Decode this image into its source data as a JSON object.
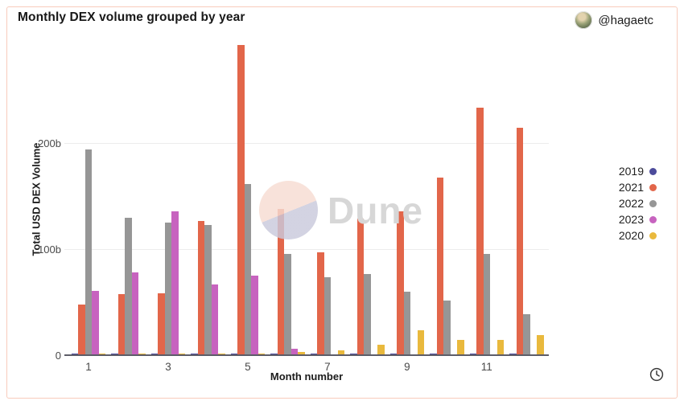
{
  "card": {
    "title": "Monthly DEX volume grouped by year",
    "author_handle": "@hagaetc",
    "watermark_text": "Dune",
    "border_color": "#f8cbbc"
  },
  "icons": {
    "clock": "clock",
    "avatar": "user-profile-photo",
    "dune_logo": "dune-circle-logo"
  },
  "chart_data": {
    "type": "bar",
    "title": "Monthly DEX volume grouped by year",
    "xlabel": "Month number",
    "ylabel": "Total USD DEX Volume",
    "unit": "billions USD",
    "x": [
      1,
      2,
      3,
      4,
      5,
      6,
      7,
      8,
      9,
      10,
      11,
      12
    ],
    "x_tick_labels": [
      "1",
      "3",
      "5",
      "7",
      "9",
      "11"
    ],
    "y_ticks": [
      {
        "value": 0,
        "label": "0"
      },
      {
        "value": 100,
        "label": "100b"
      },
      {
        "value": 200,
        "label": "200b"
      }
    ],
    "ylim": [
      0,
      294
    ],
    "grid": "horizontal",
    "legend_position": "right",
    "series": [
      {
        "name": "2019",
        "color": "#4c4b9b",
        "values": [
          1,
          1,
          1,
          1,
          1,
          1,
          1,
          1,
          1,
          1,
          1,
          1
        ]
      },
      {
        "name": "2021",
        "color": "#e2664a",
        "values": [
          47,
          57,
          58,
          126,
          292,
          137,
          96,
          128,
          135,
          167,
          233,
          214
        ]
      },
      {
        "name": "2022",
        "color": "#969696",
        "values": [
          193,
          129,
          124,
          122,
          161,
          95,
          73,
          76,
          59,
          51,
          95,
          38
        ]
      },
      {
        "name": "2023",
        "color": "#c763bf",
        "values": [
          60,
          77,
          135,
          66,
          74,
          5,
          0,
          0,
          0,
          0,
          0,
          0
        ]
      },
      {
        "name": "2020",
        "color": "#e9b93d",
        "values": [
          1,
          1,
          1,
          1,
          1,
          2,
          4,
          9,
          23,
          14,
          14,
          18
        ]
      }
    ]
  }
}
